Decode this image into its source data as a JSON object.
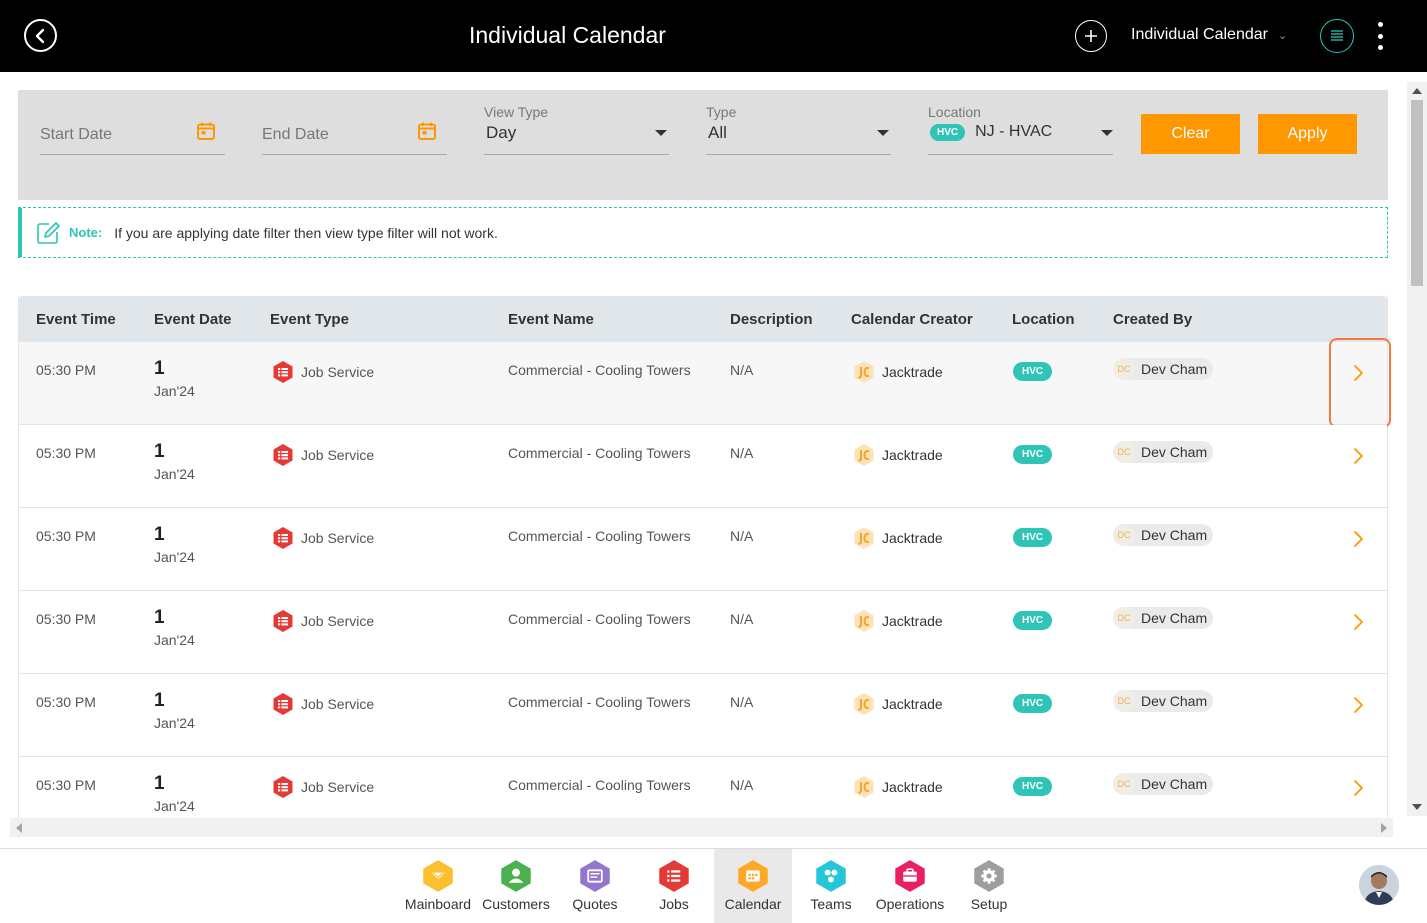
{
  "header": {
    "title": "Individual Calendar",
    "view_selector": "Individual Calendar"
  },
  "filters": {
    "start_date_placeholder": "Start Date",
    "end_date_placeholder": "End Date",
    "view_type_label": "View Type",
    "view_type_value": "Day",
    "type_label": "Type",
    "type_value": "All",
    "location_label": "Location",
    "location_badge": "HVC",
    "location_value": "NJ - HVAC",
    "clear_label": "Clear",
    "apply_label": "Apply"
  },
  "note": {
    "label": "Note:",
    "text": "If you are applying date filter then view type filter will not work."
  },
  "table": {
    "columns": [
      "Event Time",
      "Event Date",
      "Event Type",
      "Event Name",
      "Description",
      "Calendar Creator",
      "Location",
      "Created By"
    ],
    "rows": [
      {
        "time": "05:30 PM",
        "day": "1",
        "month": "Jan'24",
        "type": "Job Service",
        "name": "Commercial - Cooling Towers",
        "description": "N/A",
        "creator": "Jacktrade",
        "location": "HVC",
        "created_by_initials": "DC",
        "created_by": "Dev Cham"
      },
      {
        "time": "05:30 PM",
        "day": "1",
        "month": "Jan'24",
        "type": "Job Service",
        "name": "Commercial - Cooling Towers",
        "description": "N/A",
        "creator": "Jacktrade",
        "location": "HVC",
        "created_by_initials": "DC",
        "created_by": "Dev Cham"
      },
      {
        "time": "05:30 PM",
        "day": "1",
        "month": "Jan'24",
        "type": "Job Service",
        "name": "Commercial - Cooling Towers",
        "description": "N/A",
        "creator": "Jacktrade",
        "location": "HVC",
        "created_by_initials": "DC",
        "created_by": "Dev Cham"
      },
      {
        "time": "05:30 PM",
        "day": "1",
        "month": "Jan'24",
        "type": "Job Service",
        "name": "Commercial - Cooling Towers",
        "description": "N/A",
        "creator": "Jacktrade",
        "location": "HVC",
        "created_by_initials": "DC",
        "created_by": "Dev Cham"
      },
      {
        "time": "05:30 PM",
        "day": "1",
        "month": "Jan'24",
        "type": "Job Service",
        "name": "Commercial - Cooling Towers",
        "description": "N/A",
        "creator": "Jacktrade",
        "location": "HVC",
        "created_by_initials": "DC",
        "created_by": "Dev Cham"
      },
      {
        "time": "05:30 PM",
        "day": "1",
        "month": "Jan'24",
        "type": "Job Service",
        "name": "Commercial - Cooling Towers",
        "description": "N/A",
        "creator": "Jacktrade",
        "location": "HVC",
        "created_by_initials": "DC",
        "created_by": "Dev Cham"
      }
    ]
  },
  "bottom_nav": {
    "items": [
      {
        "label": "Mainboard",
        "color": "#fbc02d",
        "icon": "mainboard-icon"
      },
      {
        "label": "Customers",
        "color": "#4caf50",
        "icon": "customers-icon"
      },
      {
        "label": "Quotes",
        "color": "#9575cd",
        "icon": "quotes-icon"
      },
      {
        "label": "Jobs",
        "color": "#e53935",
        "icon": "jobs-icon"
      },
      {
        "label": "Calendar",
        "color": "#ffa726",
        "icon": "calendar-icon"
      },
      {
        "label": "Teams",
        "color": "#26c6da",
        "icon": "teams-icon"
      },
      {
        "label": "Operations",
        "color": "#e91e63",
        "icon": "operations-icon"
      },
      {
        "label": "Setup",
        "color": "#9e9e9e",
        "icon": "setup-icon"
      }
    ],
    "active": "Calendar"
  },
  "colors": {
    "accent": "#ff9800",
    "teal": "#2ec4b6",
    "header_bg": "#000000"
  }
}
